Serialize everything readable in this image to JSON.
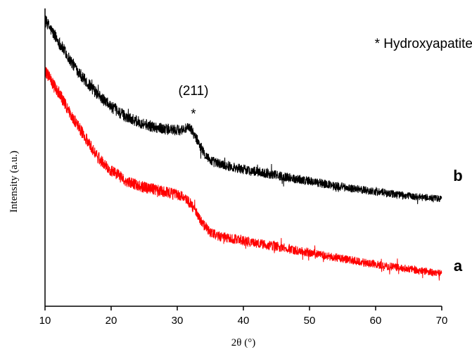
{
  "chart_data": {
    "type": "line",
    "xlabel": "2θ (°)",
    "ylabel": "Intensity (a.u.)",
    "xlim": [
      10,
      70
    ],
    "x_ticks": [
      10,
      20,
      30,
      40,
      50,
      60,
      70
    ],
    "x_tick_labels": [
      "10",
      "20",
      "30",
      "40",
      "50",
      "60",
      "70"
    ],
    "y_ticks_shown": false,
    "grid": false,
    "legend": "* Hydroxyapatite",
    "series": [
      {
        "name": "b",
        "color": "#000000",
        "noise": 0.12,
        "x": [
          10,
          12,
          14,
          16,
          18,
          20,
          22,
          24,
          26,
          28,
          30,
          31,
          32,
          33,
          34,
          35,
          36,
          38,
          40,
          45,
          50,
          55,
          60,
          65,
          70
        ],
        "y": [
          9.6,
          8.9,
          8.2,
          7.6,
          7.1,
          6.7,
          6.4,
          6.2,
          6.05,
          5.95,
          5.9,
          5.95,
          5.98,
          5.6,
          5.15,
          4.9,
          4.8,
          4.7,
          4.6,
          4.4,
          4.2,
          4.0,
          3.85,
          3.7,
          3.6
        ]
      },
      {
        "name": "a",
        "color": "#ff0000",
        "noise": 0.12,
        "x": [
          10,
          12,
          14,
          16,
          18,
          20,
          22,
          24,
          26,
          28,
          30,
          31,
          32,
          33,
          34,
          35,
          36,
          38,
          40,
          45,
          50,
          55,
          60,
          65,
          70
        ],
        "y": [
          7.9,
          7.2,
          6.4,
          5.7,
          5.0,
          4.55,
          4.25,
          4.05,
          3.95,
          3.85,
          3.75,
          3.65,
          3.45,
          3.1,
          2.7,
          2.5,
          2.38,
          2.28,
          2.2,
          2.0,
          1.8,
          1.6,
          1.4,
          1.25,
          1.1
        ]
      }
    ],
    "annotations": [
      {
        "text": "(211)",
        "x": 32.3
      },
      {
        "text": "*",
        "x": 32.3
      }
    ]
  }
}
